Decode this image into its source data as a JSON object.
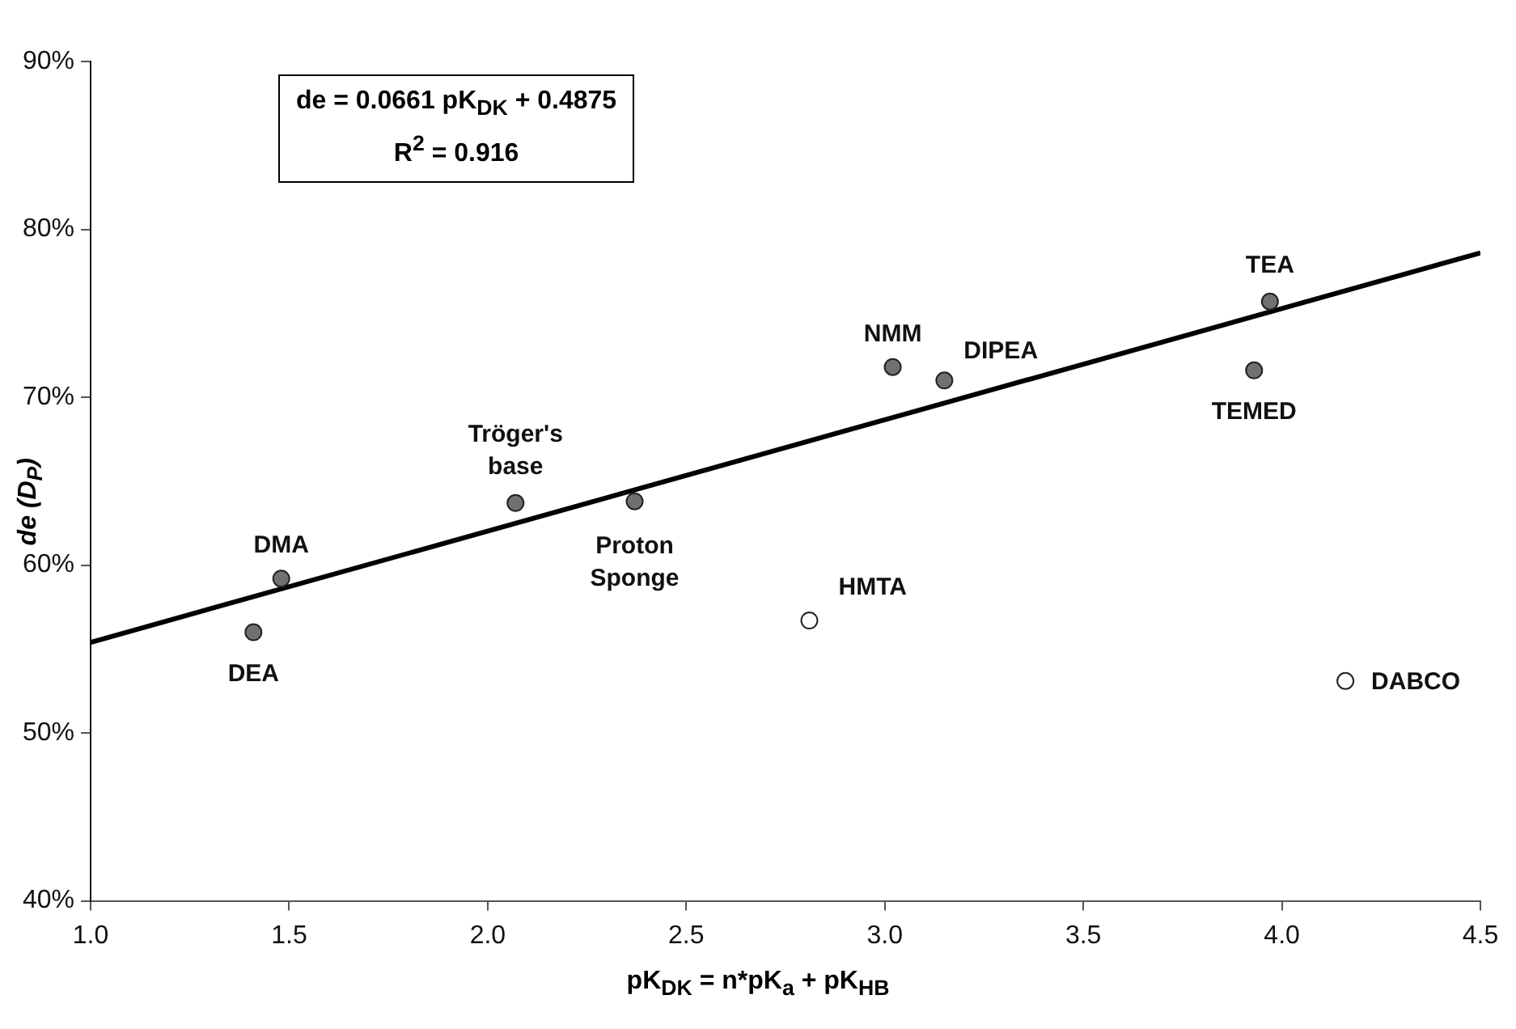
{
  "chart_data": {
    "type": "scatter",
    "xlabel": "pK$_{DK}$ = n*pK$_{a}$ + pK$_{HB}$",
    "ylabel": "de (D$_{P}$)",
    "xlim": [
      1.0,
      4.5
    ],
    "xticks": [
      {
        "value": 1.0,
        "label": "1.0"
      },
      {
        "value": 1.5,
        "label": "1.5"
      },
      {
        "value": 2.0,
        "label": "2.0"
      },
      {
        "value": 2.5,
        "label": "2.5"
      },
      {
        "value": 3.0,
        "label": "3.0"
      },
      {
        "value": 3.5,
        "label": "3.5"
      },
      {
        "value": 4.0,
        "label": "4.0"
      },
      {
        "value": 4.5,
        "label": "4.5"
      }
    ],
    "ylim": [
      40,
      90
    ],
    "yticks": [
      {
        "value": 40,
        "label": "40%"
      },
      {
        "value": 50,
        "label": "50%"
      },
      {
        "value": 60,
        "label": "60%"
      },
      {
        "value": 70,
        "label": "70%"
      },
      {
        "value": 80,
        "label": "80%"
      },
      {
        "value": 90,
        "label": "90%"
      }
    ],
    "grid": false,
    "legend": false,
    "marker": "circle",
    "series": [
      {
        "type": "scatter",
        "color": "#707070",
        "x": [
          1.41,
          1.48,
          2.07,
          2.37,
          3.02,
          3.15,
          3.93,
          3.97
        ],
        "values": [
          56.0,
          59.2,
          63.7,
          63.8,
          71.8,
          71.0,
          71.6,
          75.7
        ]
      },
      {
        "type": "scatter",
        "color": "#ffffff",
        "x": [
          2.81,
          4.16
        ],
        "values": [
          56.7,
          53.1
        ]
      },
      {
        "type": "line",
        "color": "#000000",
        "marker": "none",
        "x": [
          1.0,
          4.5
        ],
        "values": [
          55.4,
          78.6
        ]
      }
    ],
    "annotations": [
      "de = 0.0661 pK$_{DK}$ + 0.4875",
      "R$^{2}$ = 0.916",
      {
        "text": "DEA",
        "x": 1.41,
        "y": 56.0
      },
      {
        "text": "DMA",
        "x": 1.48,
        "y": 59.2
      },
      {
        "text": "Tröger's base",
        "x": 2.07,
        "y": 63.7
      },
      {
        "text": "Proton Sponge",
        "x": 2.37,
        "y": 63.8
      },
      {
        "text": "HMTA",
        "x": 2.81,
        "y": 56.7
      },
      {
        "text": "NMM",
        "x": 3.02,
        "y": 71.8
      },
      {
        "text": "DIPEA",
        "x": 3.15,
        "y": 71.0
      },
      {
        "text": "TEMED",
        "x": 3.93,
        "y": 71.6
      },
      {
        "text": "TEA",
        "x": 3.97,
        "y": 75.7
      },
      {
        "text": "DABCO",
        "x": 4.16,
        "y": 53.1
      }
    ]
  }
}
